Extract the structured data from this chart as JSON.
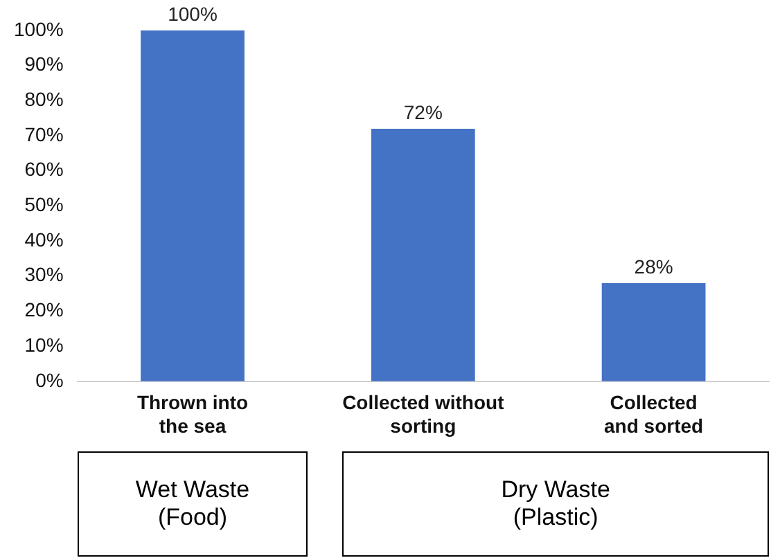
{
  "chart_data": {
    "type": "bar",
    "categories": [
      "Thrown into\nthe sea",
      "Collected without\nsorting",
      "Collected\nand sorted"
    ],
    "values": [
      100,
      72,
      28
    ],
    "color": "#4472c4",
    "value_labels": [
      "100%",
      "72%",
      "28%"
    ],
    "ylim": [
      0,
      100
    ],
    "yticks": [
      {
        "value": 0,
        "label": "0%"
      },
      {
        "value": 10,
        "label": "10%"
      },
      {
        "value": 20,
        "label": "20%"
      },
      {
        "value": 30,
        "label": "30%"
      },
      {
        "value": 40,
        "label": "40%"
      },
      {
        "value": 50,
        "label": "50%"
      },
      {
        "value": 60,
        "label": "60%"
      },
      {
        "value": 70,
        "label": "70%"
      },
      {
        "value": 80,
        "label": "80%"
      },
      {
        "value": 90,
        "label": "90%"
      },
      {
        "value": 100,
        "label": "100%"
      }
    ],
    "grid": false,
    "legend": false,
    "annotations": [
      "Wet Waste\n(Food)",
      "Dry Waste\n(Plastic)"
    ]
  }
}
